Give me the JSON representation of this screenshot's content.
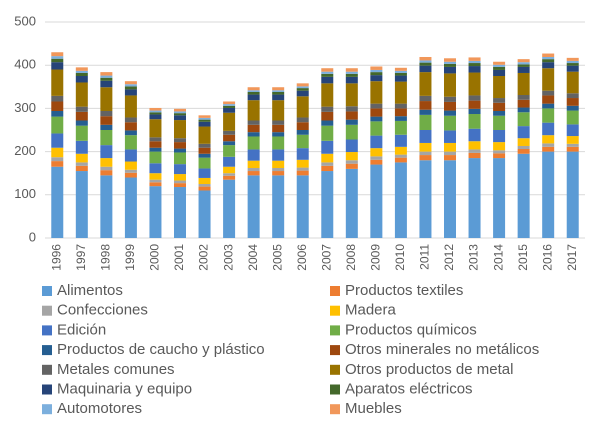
{
  "chart_data": {
    "type": "stacked_bar",
    "categories": [
      "1996",
      "1997",
      "1998",
      "1999",
      "2000",
      "2001",
      "2002",
      "2003",
      "2004",
      "2005",
      "2006",
      "2007",
      "2008",
      "2009",
      "2010",
      "2011",
      "2012",
      "2013",
      "2014",
      "2015",
      "2016",
      "2017"
    ],
    "ylim": [
      0,
      500
    ],
    "yticks": [
      0,
      100,
      200,
      300,
      400,
      500
    ],
    "grid": true,
    "series": [
      {
        "name": "Alimentos",
        "color": "#5b9bd5",
        "values": [
          165,
          155,
          145,
          140,
          120,
          118,
          110,
          135,
          145,
          145,
          145,
          155,
          160,
          170,
          175,
          180,
          180,
          185,
          185,
          195,
          200,
          200
        ]
      },
      {
        "name": "Productos textiles",
        "color": "#ed7d31",
        "values": [
          13,
          12,
          12,
          11,
          9,
          9,
          9,
          9,
          10,
          10,
          11,
          12,
          12,
          11,
          11,
          12,
          12,
          12,
          11,
          11,
          11,
          11
        ]
      },
      {
        "name": "Confecciones",
        "color": "#a5a5a5",
        "values": [
          9,
          8,
          8,
          7,
          6,
          6,
          6,
          6,
          7,
          7,
          7,
          8,
          8,
          8,
          7,
          8,
          8,
          8,
          7,
          7,
          8,
          7
        ]
      },
      {
        "name": "Madera",
        "color": "#ffc000",
        "values": [
          22,
          20,
          20,
          19,
          15,
          15,
          14,
          15,
          17,
          17,
          18,
          20,
          19,
          19,
          18,
          20,
          20,
          19,
          19,
          18,
          19,
          18
        ]
      },
      {
        "name": "Edición",
        "color": "#4472c4",
        "values": [
          33,
          30,
          30,
          28,
          23,
          23,
          22,
          23,
          26,
          26,
          27,
          30,
          29,
          29,
          28,
          30,
          29,
          29,
          28,
          28,
          29,
          27
        ]
      },
      {
        "name": "Productos químicos",
        "color": "#70ad47",
        "values": [
          39,
          35,
          35,
          33,
          27,
          27,
          25,
          27,
          30,
          30,
          31,
          35,
          34,
          33,
          32,
          35,
          34,
          34,
          33,
          32,
          33,
          32
        ]
      },
      {
        "name": "Productos de caucho y plástico",
        "color": "#255e91",
        "values": [
          13,
          12,
          12,
          11,
          9,
          9,
          9,
          9,
          10,
          10,
          11,
          12,
          12,
          11,
          11,
          12,
          12,
          12,
          11,
          11,
          11,
          11
        ]
      },
      {
        "name": "Otros minerales no metálicos",
        "color": "#9e480e",
        "values": [
          22,
          20,
          20,
          19,
          15,
          15,
          14,
          15,
          17,
          17,
          18,
          20,
          19,
          19,
          18,
          20,
          20,
          19,
          19,
          18,
          19,
          18
        ]
      },
      {
        "name": "Metales comunes",
        "color": "#636363",
        "values": [
          13,
          12,
          12,
          11,
          9,
          9,
          9,
          9,
          10,
          10,
          11,
          12,
          12,
          11,
          11,
          12,
          12,
          12,
          11,
          11,
          11,
          11
        ]
      },
      {
        "name": "Otros productos de metal",
        "color": "#997300",
        "values": [
          61,
          56,
          55,
          51,
          42,
          42,
          40,
          42,
          47,
          47,
          49,
          54,
          53,
          52,
          51,
          55,
          54,
          53,
          51,
          51,
          52,
          50
        ]
      },
      {
        "name": "Maquinaria y equipo",
        "color": "#264478",
        "values": [
          17,
          15,
          15,
          14,
          11,
          11,
          11,
          11,
          13,
          13,
          13,
          15,
          15,
          14,
          14,
          15,
          15,
          15,
          14,
          14,
          14,
          14
        ]
      },
      {
        "name": "Aparatos eléctricos",
        "color": "#43682b",
        "values": [
          8,
          7,
          7,
          7,
          5,
          5,
          5,
          5,
          6,
          6,
          6,
          7,
          7,
          7,
          6,
          7,
          7,
          7,
          7,
          6,
          7,
          6
        ]
      },
      {
        "name": "Automotores",
        "color": "#7cafdd",
        "values": [
          6,
          5,
          5,
          5,
          4,
          4,
          4,
          4,
          4,
          4,
          4,
          5,
          5,
          5,
          5,
          5,
          5,
          5,
          5,
          5,
          5,
          5
        ]
      },
      {
        "name": "Muebles",
        "color": "#f1975a",
        "values": [
          9,
          8,
          8,
          7,
          6,
          6,
          6,
          6,
          7,
          7,
          7,
          8,
          8,
          8,
          7,
          8,
          8,
          8,
          7,
          7,
          8,
          7
        ]
      }
    ]
  }
}
